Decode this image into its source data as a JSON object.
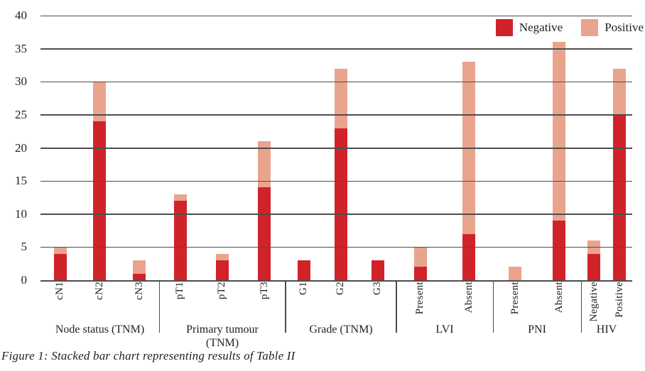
{
  "figure": {
    "caption": "Figure 1: Stacked bar chart representing results of Table II"
  },
  "colors": {
    "negative": "#d02329",
    "positive": "#e9a48e",
    "gridline": "#4d4d4f",
    "text": "#1f1f1f",
    "background": "#ffffff"
  },
  "chart_data": {
    "type": "bar",
    "stacked": true,
    "title": "",
    "xlabel": "",
    "ylabel": "",
    "ylim": [
      0,
      40
    ],
    "y_ticks": [
      0,
      5,
      10,
      15,
      20,
      25,
      30,
      35,
      40
    ],
    "grid": true,
    "legend_position": "top-right",
    "series_names": [
      "Negative",
      "Positive"
    ],
    "series_colors": [
      "#d02329",
      "#e9a48e"
    ],
    "groups": [
      {
        "label": "Node status (TNM)",
        "label_lines": [
          "Node status (TNM)"
        ],
        "width_pct": 20.05,
        "categories": [
          "cN1",
          "cN2",
          "cN3"
        ],
        "series": [
          {
            "name": "Negative",
            "values": [
              4,
              24,
              1
            ]
          },
          {
            "name": "Positive",
            "values": [
              1,
              6,
              2
            ]
          }
        ]
      },
      {
        "label": "Primary tumour (TNM)",
        "label_lines": [
          "Primary tumour",
          "(TNM)"
        ],
        "width_pct": 21.37,
        "categories": [
          "pT1",
          "pT2",
          "pT3"
        ],
        "series": [
          {
            "name": "Negative",
            "values": [
              12,
              3,
              14
            ]
          },
          {
            "name": "Positive",
            "values": [
              1,
              1,
              7
            ]
          }
        ]
      },
      {
        "label": "Grade (TNM)",
        "label_lines": [
          "Grade (TNM)"
        ],
        "width_pct": 18.73,
        "categories": [
          "G1",
          "G2",
          "G3"
        ],
        "series": [
          {
            "name": "Negative",
            "values": [
              3,
              23,
              3
            ]
          },
          {
            "name": "Positive",
            "values": [
              0,
              9,
              0
            ]
          }
        ]
      },
      {
        "label": "LVI",
        "label_lines": [
          "LVI"
        ],
        "width_pct": 16.33,
        "categories": [
          "Present",
          "Absent"
        ],
        "series": [
          {
            "name": "Negative",
            "values": [
              2,
              7
            ]
          },
          {
            "name": "Positive",
            "values": [
              3,
              26
            ]
          }
        ]
      },
      {
        "label": "PNI",
        "label_lines": [
          "PNI"
        ],
        "width_pct": 14.89,
        "categories": [
          "Present",
          "Absent"
        ],
        "series": [
          {
            "name": "Negative",
            "values": [
              0,
              9
            ]
          },
          {
            "name": "Positive",
            "values": [
              2,
              27
            ]
          }
        ]
      },
      {
        "label": "HIV",
        "label_lines": [
          "HIV"
        ],
        "width_pct": 8.64,
        "categories": [
          "Negative",
          "Positive"
        ],
        "series": [
          {
            "name": "Negative",
            "values": [
              4,
              25
            ]
          },
          {
            "name": "Positive",
            "values": [
              2,
              7
            ]
          }
        ]
      }
    ]
  }
}
